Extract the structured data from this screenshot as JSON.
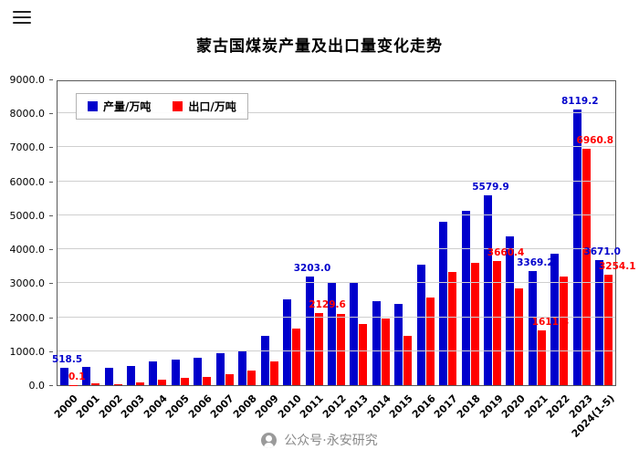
{
  "menu": {
    "icon": "hamburger-icon"
  },
  "watermark": {
    "text": "公众号·永安研究"
  },
  "chart_data": {
    "type": "bar",
    "title": "蒙古国煤炭产量及出口量变化走势",
    "ylim": [
      0,
      9000
    ],
    "ytick_step": 1000,
    "grid": true,
    "legend_position": "top-left-inside",
    "categories": [
      "2000",
      "2001",
      "2002",
      "2003",
      "2004",
      "2005",
      "2006",
      "2007",
      "2008",
      "2009",
      "2010",
      "2011",
      "2012",
      "2013",
      "2014",
      "2015",
      "2016",
      "2017",
      "2018",
      "2019",
      "2020",
      "2021",
      "2022",
      "2023",
      "2024(1-5)"
    ],
    "series": [
      {
        "name": "产量/万吨",
        "color": "#0000cc",
        "values": [
          518.5,
          550,
          510,
          560,
          690,
          740,
          800,
          950,
          990,
          1440,
          2520,
          3203.0,
          3010,
          3020,
          2460,
          2400,
          3550,
          4820,
          5130,
          5579.9,
          4380,
          3369.2,
          3870,
          8119.2,
          3671.0
        ],
        "labels": {
          "0": "518.5",
          "11": "3203.0",
          "19": "5579.9",
          "21": "3369.2",
          "23": "8119.2",
          "24": "3671.0"
        }
      },
      {
        "name": "出口/万吨",
        "color": "#ff0000",
        "values": [
          0.1,
          50,
          30,
          90,
          150,
          210,
          250,
          330,
          420,
          700,
          1660,
          2129.6,
          2090,
          1810,
          1950,
          1440,
          2570,
          3340,
          3610,
          3660.4,
          2850,
          1611.8,
          3190,
          6960.8,
          3254.1
        ],
        "labels": {
          "0": "0.1",
          "11": "2129.6",
          "19": "3660.4",
          "21": "1611.8",
          "23": "6960.8",
          "24": "3254.1"
        }
      }
    ]
  }
}
